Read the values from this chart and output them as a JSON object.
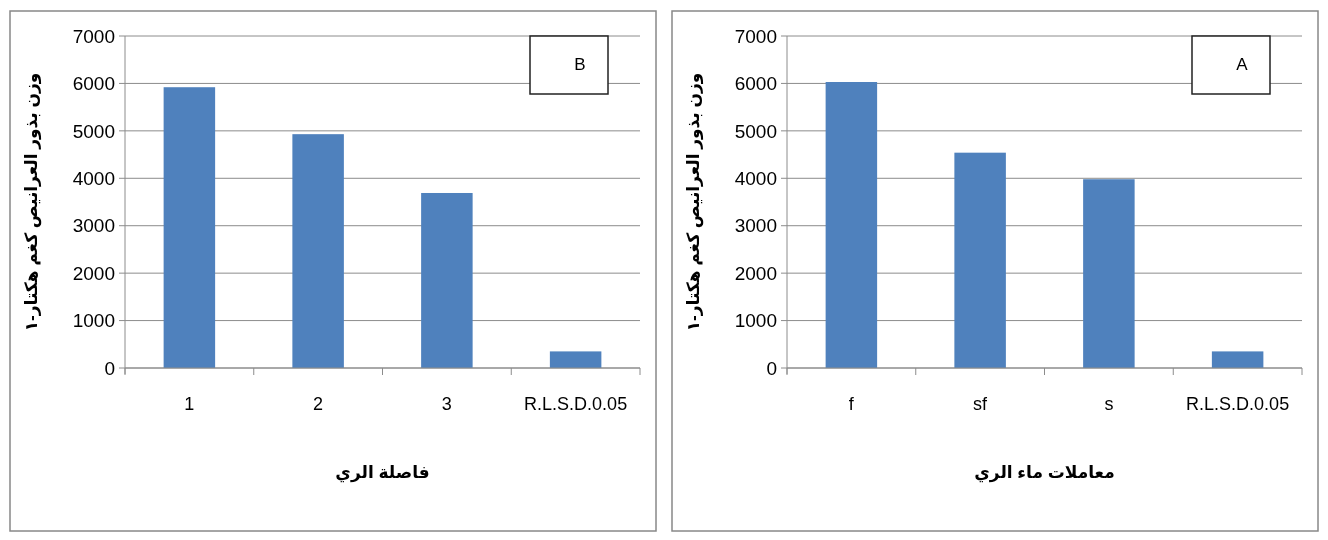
{
  "chart_data": [
    {
      "type": "bar",
      "categories": [
        "1",
        "2",
        "3",
        "R.L.S.D.0.05"
      ],
      "values": [
        5920,
        4930,
        3690,
        350
      ],
      "color": "#4f81bd",
      "ylim": [
        0,
        7000
      ],
      "yticks": [
        0,
        1000,
        2000,
        3000,
        4000,
        5000,
        6000,
        7000
      ],
      "grid": "y",
      "xlabel": "فاصلة الري",
      "ylabel": "وزن بذور العرانيص كغم هكتار-١",
      "annotations": [
        "B"
      ]
    },
    {
      "type": "bar",
      "categories": [
        "f",
        "sf",
        "s",
        "R.L.S.D.0.05"
      ],
      "values": [
        6030,
        4540,
        3980,
        350
      ],
      "color": "#4f81bd",
      "ylim": [
        0,
        7000
      ],
      "yticks": [
        0,
        1000,
        2000,
        3000,
        4000,
        5000,
        6000,
        7000
      ],
      "grid": "y",
      "xlabel": "معاملات ماء الري",
      "ylabel": "وزن بذور العرانيص كغم هكتار-١",
      "annotations": [
        "A"
      ]
    }
  ]
}
